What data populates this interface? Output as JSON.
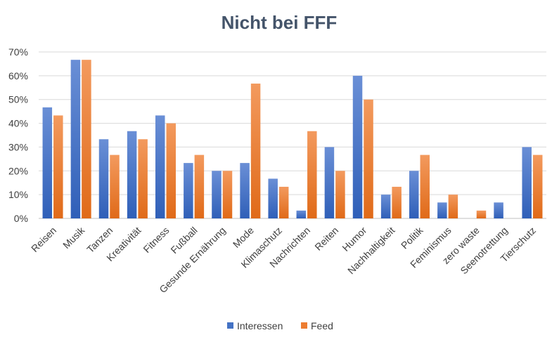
{
  "chart_data": {
    "type": "bar",
    "title": "Nicht bei FFF",
    "xlabel": "",
    "ylabel": "",
    "ylim": [
      0,
      70
    ],
    "y_ticks": [
      "0%",
      "10%",
      "20%",
      "30%",
      "40%",
      "50%",
      "60%",
      "70%"
    ],
    "grid": true,
    "legend_position": "bottom",
    "categories": [
      "Reisen",
      "Musik",
      "Tanzen",
      "Kreativität",
      "Fitness",
      "Fußball",
      "Gesunde Ernährung",
      "Mode",
      "Klimaschutz",
      "Nachrichten",
      "Reiten",
      "Humor",
      "Nachhaltigkeit",
      "Politik",
      "Feminismus",
      "zero waste",
      "Seenotrettung",
      "Tierschutz"
    ],
    "series": [
      {
        "name": "Interessen",
        "color": "#4472c4",
        "values": [
          46.7,
          66.7,
          33.3,
          36.7,
          43.3,
          23.3,
          20.0,
          23.3,
          16.7,
          3.3,
          30.0,
          60.0,
          10.0,
          20.0,
          6.7,
          0,
          6.7,
          30.0
        ]
      },
      {
        "name": "Feed",
        "color": "#ed7d31",
        "values": [
          43.3,
          66.7,
          26.7,
          33.3,
          40.0,
          26.7,
          20.0,
          56.7,
          13.3,
          36.7,
          20.0,
          50.0,
          13.3,
          26.7,
          10.0,
          3.3,
          0,
          26.7
        ]
      }
    ]
  }
}
